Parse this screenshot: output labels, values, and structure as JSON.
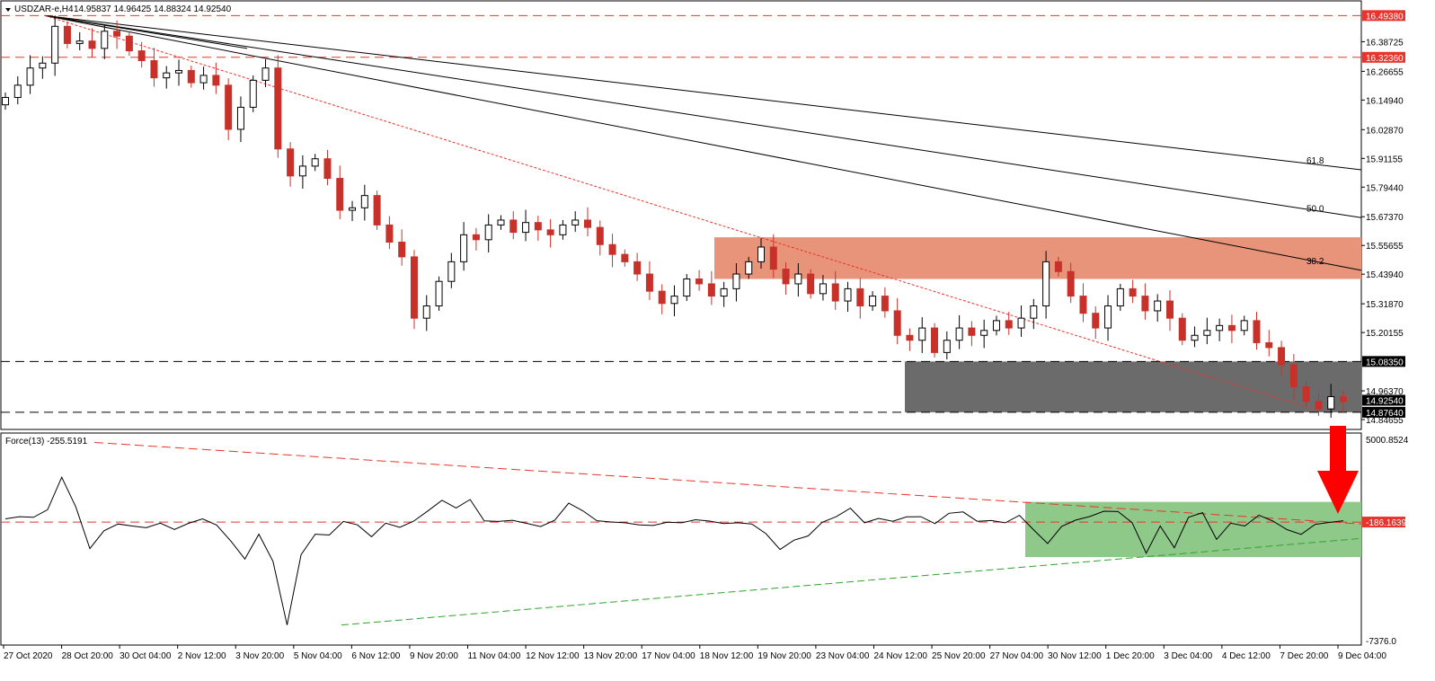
{
  "window": {
    "symbol_label": "USDZAR-e,H4",
    "ohlc_label": "14.95837 14.96425 14.88324 14.92540"
  },
  "chart_data": [
    {
      "type": "candlestick",
      "title": "USDZAR-e,H4",
      "ylim": [
        14.81,
        16.55
      ],
      "yticks": [
        "16.38725",
        "16.26655",
        "16.14940",
        "16.02870",
        "15.91155",
        "15.79440",
        "15.67370",
        "15.55655",
        "15.43940",
        "15.31870",
        "15.20155",
        "14.96370",
        "14.84655"
      ],
      "price_labels": [
        {
          "value": 16.4938,
          "text": "16.49380",
          "color": "#e8342c",
          "style": "dashed"
        },
        {
          "value": 16.3236,
          "text": "16.32360",
          "color": "#e8342c",
          "style": "dashed"
        },
        {
          "value": 15.0835,
          "text": "15.08350",
          "color": "#000000",
          "style": "dashed"
        },
        {
          "value": 14.9254,
          "text": "14.92540",
          "color": "#000000",
          "style": "current"
        },
        {
          "value": 14.8764,
          "text": "14.87640",
          "color": "#000000",
          "style": "dashed"
        }
      ],
      "zones": [
        {
          "name": "resistance",
          "from_time": "18 Nov 20:00",
          "y_low": 15.42,
          "y_high": 15.59,
          "color": "#e8947a"
        },
        {
          "name": "support",
          "from_time": "25 Nov",
          "y_low": 14.8764,
          "y_high": 15.0835,
          "color": "#6b6b6b"
        }
      ],
      "fib_fan_labels": [
        "61.8",
        "50.0",
        "38.2"
      ],
      "x_labels": [
        "27 Oct 2020",
        "28 Oct 20:00",
        "30 Oct 04:00",
        "2 Nov 12:00",
        "3 Nov 20:00",
        "5 Nov 04:00",
        "6 Nov 12:00",
        "9 Nov 20:00",
        "11 Nov 04:00",
        "12 Nov 12:00",
        "13 Nov 20:00",
        "17 Nov 04:00",
        "18 Nov 12:00",
        "19 Nov 20:00",
        "23 Nov 04:00",
        "24 Nov 12:00",
        "25 Nov 20:00",
        "27 Nov 04:00",
        "30 Nov 12:00",
        "1 Dec 20:00",
        "3 Dec 04:00",
        "4 Dec 12:00",
        "7 Dec 20:00",
        "9 Dec 04:00"
      ],
      "closes": [
        16.16,
        16.21,
        16.28,
        16.3,
        16.45,
        16.38,
        16.39,
        16.36,
        16.43,
        16.41,
        16.35,
        16.31,
        16.24,
        16.26,
        16.27,
        16.22,
        16.25,
        16.21,
        16.03,
        16.12,
        16.23,
        16.28,
        15.95,
        15.84,
        15.88,
        15.91,
        15.83,
        15.7,
        15.71,
        15.76,
        15.64,
        15.57,
        15.51,
        15.26,
        15.31,
        15.41,
        15.49,
        15.6,
        15.58,
        15.64,
        15.66,
        15.61,
        15.65,
        15.62,
        15.6,
        15.64,
        15.66,
        15.63,
        15.56,
        15.52,
        15.49,
        15.44,
        15.37,
        15.32,
        15.35,
        15.42,
        15.4,
        15.35,
        15.38,
        15.44,
        15.49,
        15.55,
        15.46,
        15.4,
        15.44,
        15.36,
        15.4,
        15.33,
        15.38,
        15.31,
        15.35,
        15.29,
        15.19,
        15.17,
        15.22,
        15.12,
        15.17,
        15.22,
        15.19,
        15.21,
        15.25,
        15.22,
        15.26,
        15.31,
        15.49,
        15.45,
        15.35,
        15.28,
        15.22,
        15.31,
        15.38,
        15.35,
        15.29,
        15.33,
        15.26,
        15.17,
        15.19,
        15.21,
        15.23,
        15.21,
        15.25,
        15.16,
        15.14,
        15.07,
        14.98,
        14.92,
        14.89,
        14.94,
        14.92
      ]
    },
    {
      "type": "line",
      "title": "Force(13) -255.5191",
      "series": [
        {
          "name": "Force(13)",
          "values": [
            0,
            130,
            90,
            540,
            2450,
            700,
            -1750,
            -700,
            -300,
            -420,
            -520,
            -250,
            -620,
            -260,
            0,
            -360,
            -1300,
            -2360,
            -900,
            -2500,
            -6250,
            -2100,
            -900,
            -950,
            -150,
            -350,
            -1050,
            -250,
            -500,
            -130,
            470,
            1100,
            640,
            1140,
            -120,
            -150,
            -80,
            -260,
            -450,
            -80,
            930,
            480,
            -110,
            -180,
            -230,
            -350,
            -390,
            -200,
            -230,
            -50,
            -130,
            -280,
            -230,
            -300,
            -870,
            -1800,
            -1250,
            -1000,
            -200,
            130,
            630,
            -230,
            30,
            -140,
            120,
            130,
            -280,
            330,
            410,
            -140,
            -100,
            -230,
            210,
            -640,
            -1450,
            -440,
            -70,
            140,
            450,
            430,
            -220,
            -2020,
            -420,
            -1700,
            90,
            370,
            -1210,
            -250,
            -420,
            220,
            -130,
            -630,
            -910,
            -320,
            -210,
            -110
          ]
        }
      ],
      "ylim": [
        -7376.0,
        5000.8524
      ],
      "yticks": [
        "5000.8524",
        "-7376.0"
      ],
      "level_label": {
        "value": -186.1639,
        "text": "-186.1639"
      },
      "zones": [
        {
          "name": "oscillator-box",
          "color": "#8fc98a"
        }
      ]
    }
  ],
  "colors": {
    "bull": "#000000",
    "bear": "#c8312a",
    "trend_red": "#e8342c",
    "trend_green": "#2ea32e",
    "arrow": "#ff0000"
  }
}
